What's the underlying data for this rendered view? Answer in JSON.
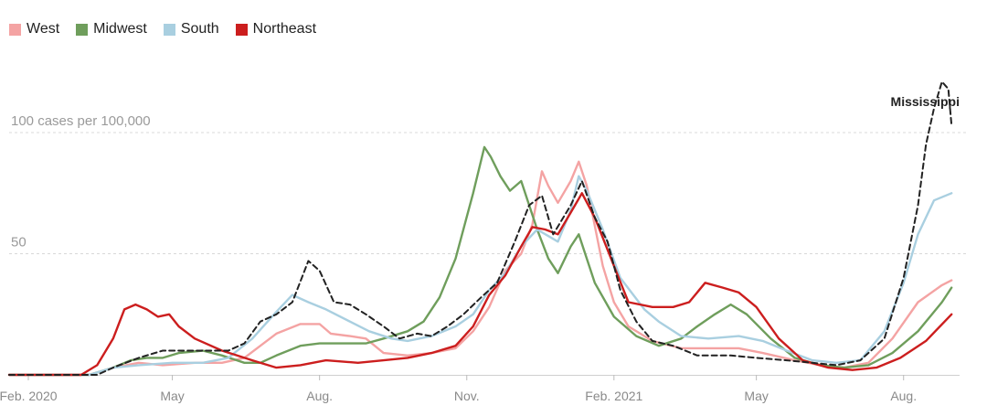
{
  "chart_data": {
    "type": "line",
    "title": "",
    "xlabel": "",
    "ylabel": "",
    "y_unit_label": "100 cases per 100,000",
    "ylim": [
      0,
      126
    ],
    "xlim": [
      "2020-01-20",
      "2021-09-05"
    ],
    "y_ticks": [
      {
        "value": 50,
        "label": "50"
      },
      {
        "value": 100,
        "label": "100 cases per 100,000"
      }
    ],
    "x_ticks": [
      {
        "date": "2020-02-01",
        "label": "Feb. 2020"
      },
      {
        "date": "2020-05-01",
        "label": "May"
      },
      {
        "date": "2020-08-01",
        "label": "Aug."
      },
      {
        "date": "2020-11-01",
        "label": "Nov."
      },
      {
        "date": "2021-02-01",
        "label": "Feb. 2021"
      },
      {
        "date": "2021-05-01",
        "label": "May"
      },
      {
        "date": "2021-08-01",
        "label": "Aug."
      }
    ],
    "grid": "horizontal dashed at labeled y ticks",
    "legend_position": "top-left",
    "annotations": [
      {
        "text": "Mississippi",
        "date": "2021-08-12",
        "y": 110
      }
    ],
    "series": [
      {
        "name": "West",
        "color": "#f4a3a3",
        "dash": false,
        "points": [
          [
            "2020-01-20",
            0
          ],
          [
            "2020-03-10",
            0
          ],
          [
            "2020-03-25",
            3
          ],
          [
            "2020-04-10",
            5
          ],
          [
            "2020-04-25",
            4
          ],
          [
            "2020-05-15",
            5
          ],
          [
            "2020-06-01",
            5
          ],
          [
            "2020-06-15",
            7
          ],
          [
            "2020-06-25",
            12
          ],
          [
            "2020-07-05",
            17
          ],
          [
            "2020-07-20",
            21
          ],
          [
            "2020-08-01",
            21
          ],
          [
            "2020-08-08",
            17
          ],
          [
            "2020-08-20",
            16
          ],
          [
            "2020-08-30",
            15
          ],
          [
            "2020-09-10",
            9
          ],
          [
            "2020-09-25",
            8
          ],
          [
            "2020-10-10",
            9
          ],
          [
            "2020-10-25",
            11
          ],
          [
            "2020-11-05",
            18
          ],
          [
            "2020-11-15",
            28
          ],
          [
            "2020-11-25",
            43
          ],
          [
            "2020-12-05",
            50
          ],
          [
            "2020-12-12",
            62
          ],
          [
            "2020-12-18",
            84
          ],
          [
            "2020-12-22",
            78
          ],
          [
            "2020-12-28",
            71
          ],
          [
            "2021-01-05",
            80
          ],
          [
            "2021-01-10",
            88
          ],
          [
            "2021-01-15",
            78
          ],
          [
            "2021-01-25",
            45
          ],
          [
            "2021-02-01",
            30
          ],
          [
            "2021-02-10",
            20
          ],
          [
            "2021-02-25",
            14
          ],
          [
            "2021-03-15",
            11
          ],
          [
            "2021-04-01",
            11
          ],
          [
            "2021-04-20",
            11
          ],
          [
            "2021-05-05",
            9
          ],
          [
            "2021-05-25",
            6
          ],
          [
            "2021-06-10",
            4
          ],
          [
            "2021-06-25",
            3
          ],
          [
            "2021-07-10",
            5
          ],
          [
            "2021-07-25",
            15
          ],
          [
            "2021-08-10",
            30
          ],
          [
            "2021-08-25",
            37
          ],
          [
            "2021-08-31",
            39
          ]
        ]
      },
      {
        "name": "Midwest",
        "color": "#6f9e5c",
        "dash": false,
        "points": [
          [
            "2020-01-20",
            0
          ],
          [
            "2020-03-10",
            0
          ],
          [
            "2020-03-25",
            3
          ],
          [
            "2020-04-05",
            6
          ],
          [
            "2020-04-15",
            7
          ],
          [
            "2020-04-25",
            7
          ],
          [
            "2020-05-05",
            9
          ],
          [
            "2020-05-20",
            10
          ],
          [
            "2020-06-01",
            8
          ],
          [
            "2020-06-15",
            5
          ],
          [
            "2020-06-25",
            5
          ],
          [
            "2020-07-05",
            8
          ],
          [
            "2020-07-20",
            12
          ],
          [
            "2020-08-01",
            13
          ],
          [
            "2020-08-15",
            13
          ],
          [
            "2020-08-30",
            13
          ],
          [
            "2020-09-10",
            15
          ],
          [
            "2020-09-25",
            18
          ],
          [
            "2020-10-05",
            22
          ],
          [
            "2020-10-15",
            32
          ],
          [
            "2020-10-25",
            48
          ],
          [
            "2020-11-05",
            75
          ],
          [
            "2020-11-12",
            94
          ],
          [
            "2020-11-16",
            90
          ],
          [
            "2020-11-22",
            82
          ],
          [
            "2020-11-28",
            76
          ],
          [
            "2020-12-05",
            80
          ],
          [
            "2020-12-15",
            60
          ],
          [
            "2020-12-22",
            48
          ],
          [
            "2020-12-28",
            42
          ],
          [
            "2021-01-05",
            53
          ],
          [
            "2021-01-10",
            58
          ],
          [
            "2021-01-20",
            38
          ],
          [
            "2021-02-01",
            24
          ],
          [
            "2021-02-15",
            16
          ],
          [
            "2021-03-01",
            12
          ],
          [
            "2021-03-15",
            15
          ],
          [
            "2021-03-25",
            20
          ],
          [
            "2021-04-05",
            25
          ],
          [
            "2021-04-15",
            29
          ],
          [
            "2021-04-25",
            25
          ],
          [
            "2021-05-10",
            15
          ],
          [
            "2021-05-25",
            7
          ],
          [
            "2021-06-10",
            4
          ],
          [
            "2021-06-25",
            3
          ],
          [
            "2021-07-10",
            4
          ],
          [
            "2021-07-25",
            9
          ],
          [
            "2021-08-10",
            18
          ],
          [
            "2021-08-25",
            30
          ],
          [
            "2021-08-31",
            36
          ]
        ]
      },
      {
        "name": "South",
        "color": "#a9cfe0",
        "dash": false,
        "points": [
          [
            "2020-01-20",
            0
          ],
          [
            "2020-03-10",
            0
          ],
          [
            "2020-03-25",
            3
          ],
          [
            "2020-04-10",
            4
          ],
          [
            "2020-05-01",
            5
          ],
          [
            "2020-05-20",
            5
          ],
          [
            "2020-06-05",
            7
          ],
          [
            "2020-06-20",
            15
          ],
          [
            "2020-07-05",
            26
          ],
          [
            "2020-07-15",
            33
          ],
          [
            "2020-07-25",
            30
          ],
          [
            "2020-08-05",
            27
          ],
          [
            "2020-08-20",
            22
          ],
          [
            "2020-09-01",
            18
          ],
          [
            "2020-09-15",
            15
          ],
          [
            "2020-09-25",
            14
          ],
          [
            "2020-10-10",
            16
          ],
          [
            "2020-10-25",
            20
          ],
          [
            "2020-11-05",
            25
          ],
          [
            "2020-11-15",
            35
          ],
          [
            "2020-11-25",
            42
          ],
          [
            "2020-12-05",
            53
          ],
          [
            "2020-12-15",
            60
          ],
          [
            "2020-12-28",
            55
          ],
          [
            "2021-01-05",
            68
          ],
          [
            "2021-01-10",
            82
          ],
          [
            "2021-01-15",
            76
          ],
          [
            "2021-01-25",
            60
          ],
          [
            "2021-02-05",
            40
          ],
          [
            "2021-02-20",
            27
          ],
          [
            "2021-03-01",
            22
          ],
          [
            "2021-03-15",
            16
          ],
          [
            "2021-04-01",
            15
          ],
          [
            "2021-04-20",
            16
          ],
          [
            "2021-05-05",
            14
          ],
          [
            "2021-05-20",
            10
          ],
          [
            "2021-06-05",
            6
          ],
          [
            "2021-06-20",
            5
          ],
          [
            "2021-07-05",
            6
          ],
          [
            "2021-07-20",
            18
          ],
          [
            "2021-08-01",
            38
          ],
          [
            "2021-08-10",
            58
          ],
          [
            "2021-08-20",
            72
          ],
          [
            "2021-08-31",
            75
          ]
        ]
      },
      {
        "name": "Northeast",
        "color": "#cc1e1e",
        "dash": false,
        "points": [
          [
            "2020-01-20",
            0
          ],
          [
            "2020-03-05",
            0
          ],
          [
            "2020-03-15",
            4
          ],
          [
            "2020-03-25",
            15
          ],
          [
            "2020-04-01",
            27
          ],
          [
            "2020-04-08",
            29
          ],
          [
            "2020-04-15",
            27
          ],
          [
            "2020-04-22",
            24
          ],
          [
            "2020-04-29",
            25
          ],
          [
            "2020-05-05",
            20
          ],
          [
            "2020-05-15",
            15
          ],
          [
            "2020-06-01",
            10
          ],
          [
            "2020-06-20",
            6
          ],
          [
            "2020-07-05",
            3
          ],
          [
            "2020-07-20",
            4
          ],
          [
            "2020-08-05",
            6
          ],
          [
            "2020-08-25",
            5
          ],
          [
            "2020-09-10",
            6
          ],
          [
            "2020-09-25",
            7
          ],
          [
            "2020-10-10",
            9
          ],
          [
            "2020-10-25",
            12
          ],
          [
            "2020-11-05",
            20
          ],
          [
            "2020-11-15",
            33
          ],
          [
            "2020-11-25",
            41
          ],
          [
            "2020-12-05",
            53
          ],
          [
            "2020-12-12",
            61
          ],
          [
            "2020-12-20",
            60
          ],
          [
            "2020-12-28",
            58
          ],
          [
            "2021-01-05",
            67
          ],
          [
            "2021-01-12",
            75
          ],
          [
            "2021-01-20",
            65
          ],
          [
            "2021-02-01",
            45
          ],
          [
            "2021-02-10",
            30
          ],
          [
            "2021-02-25",
            28
          ],
          [
            "2021-03-10",
            28
          ],
          [
            "2021-03-20",
            30
          ],
          [
            "2021-03-30",
            38
          ],
          [
            "2021-04-10",
            36
          ],
          [
            "2021-04-20",
            34
          ],
          [
            "2021-05-01",
            28
          ],
          [
            "2021-05-15",
            15
          ],
          [
            "2021-05-30",
            6
          ],
          [
            "2021-06-15",
            3
          ],
          [
            "2021-06-30",
            2
          ],
          [
            "2021-07-15",
            3
          ],
          [
            "2021-07-30",
            7
          ],
          [
            "2021-08-15",
            14
          ],
          [
            "2021-08-31",
            25
          ]
        ]
      },
      {
        "name": "Mississippi",
        "color": "#222222",
        "dash": true,
        "points": [
          [
            "2020-01-20",
            0
          ],
          [
            "2020-03-15",
            0
          ],
          [
            "2020-03-25",
            3
          ],
          [
            "2020-04-10",
            7
          ],
          [
            "2020-04-25",
            10
          ],
          [
            "2020-05-10",
            10
          ],
          [
            "2020-05-25",
            10
          ],
          [
            "2020-06-05",
            10
          ],
          [
            "2020-06-15",
            13
          ],
          [
            "2020-06-25",
            22
          ],
          [
            "2020-07-05",
            25
          ],
          [
            "2020-07-15",
            30
          ],
          [
            "2020-07-25",
            47
          ],
          [
            "2020-08-01",
            43
          ],
          [
            "2020-08-10",
            30
          ],
          [
            "2020-08-20",
            29
          ],
          [
            "2020-08-30",
            25
          ],
          [
            "2020-09-10",
            20
          ],
          [
            "2020-09-20",
            15
          ],
          [
            "2020-10-01",
            17
          ],
          [
            "2020-10-10",
            16
          ],
          [
            "2020-10-20",
            20
          ],
          [
            "2020-10-30",
            25
          ],
          [
            "2020-11-10",
            32
          ],
          [
            "2020-11-20",
            38
          ],
          [
            "2020-12-01",
            55
          ],
          [
            "2020-12-10",
            70
          ],
          [
            "2020-12-18",
            74
          ],
          [
            "2020-12-25",
            58
          ],
          [
            "2021-01-05",
            70
          ],
          [
            "2021-01-12",
            80
          ],
          [
            "2021-01-20",
            65
          ],
          [
            "2021-01-28",
            55
          ],
          [
            "2021-02-05",
            35
          ],
          [
            "2021-02-15",
            22
          ],
          [
            "2021-02-25",
            14
          ],
          [
            "2021-03-10",
            12
          ],
          [
            "2021-03-25",
            8
          ],
          [
            "2021-04-15",
            8
          ],
          [
            "2021-05-01",
            7
          ],
          [
            "2021-05-20",
            6
          ],
          [
            "2021-06-05",
            5
          ],
          [
            "2021-06-20",
            4
          ],
          [
            "2021-07-05",
            6
          ],
          [
            "2021-07-20",
            15
          ],
          [
            "2021-08-01",
            40
          ],
          [
            "2021-08-10",
            70
          ],
          [
            "2021-08-15",
            95
          ],
          [
            "2021-08-20",
            110
          ],
          [
            "2021-08-25",
            121
          ],
          [
            "2021-08-29",
            118
          ],
          [
            "2021-08-31",
            103
          ]
        ]
      }
    ]
  }
}
